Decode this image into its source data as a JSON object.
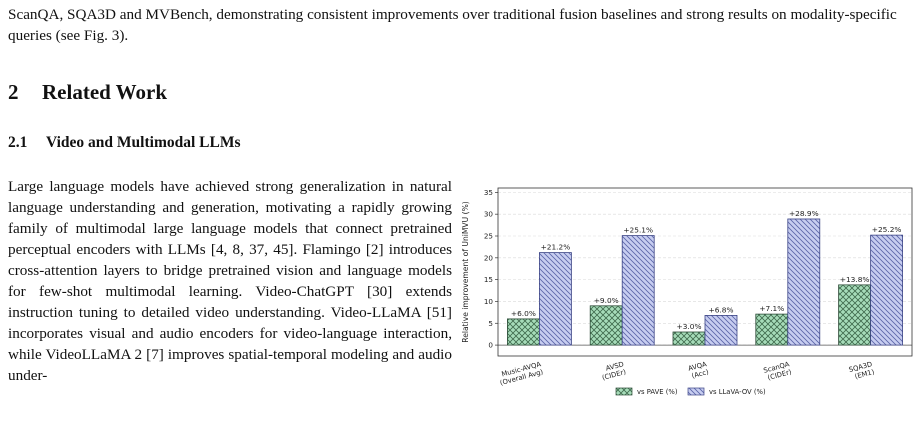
{
  "intro": {
    "text": "ScanQA, SQA3D and MVBench, demonstrating consistent improvements over traditional fusion baselines and strong results on modality-specific queries (see Fig. 3)."
  },
  "section": {
    "number": "2",
    "title": "Related Work"
  },
  "subsection": {
    "number": "2.1",
    "title": "Video and Multimodal LLMs"
  },
  "body": {
    "text": "Large language models have achieved strong generalization in natural language understanding and generation, motivating a rapidly growing family of multimodal large language models that connect pretrained perceptual encoders with LLMs [4, 8, 37, 45]. Flamingo [2] introduces cross-attention layers to bridge pretrained vision and language models for few-shot multimodal learning. Video-ChatGPT [30] extends instruction tuning to detailed video understanding. Video-LLaMA [51] incorporates visual and audio encoders for video-language interaction, while VideoLLaMA 2 [7] improves spatial-temporal modeling and audio under-"
  },
  "colors": {
    "pave_fill": "#a6dcb9",
    "pave_hatch": "#3f6a4d",
    "llava_fill": "#c7cdf0",
    "llava_hatch": "#5a64a8"
  },
  "chart_data": {
    "type": "bar",
    "categories": [
      [
        "Music-AVQA",
        "(Overall Avg)"
      ],
      [
        "AVSD",
        "(CIDEr)"
      ],
      [
        "AVQA",
        "(Acc)"
      ],
      [
        "ScanQA",
        "(CIDEr)"
      ],
      [
        "SQA3D",
        "(EM1)"
      ]
    ],
    "series": [
      {
        "name": "vs PAVE (%)",
        "values": [
          6.0,
          9.0,
          3.0,
          7.1,
          13.8
        ],
        "labels": [
          "+6.0%",
          "+9.0%",
          "+3.0%",
          "+7.1%",
          "+13.8%"
        ]
      },
      {
        "name": "vs LLaVA-OV (%)",
        "values": [
          21.2,
          25.1,
          6.8,
          28.9,
          25.2
        ],
        "labels": [
          "+21.2%",
          "+25.1%",
          "+6.8%",
          "+28.9%",
          "+25.2%"
        ]
      }
    ],
    "ylabel": "Relative improvement of UniMVU (%)",
    "ylim": [
      -2.5,
      36
    ],
    "yticks": [
      0,
      5,
      10,
      15,
      20,
      25,
      30,
      35
    ],
    "grid": "y",
    "legend_position": "bottom-center"
  }
}
